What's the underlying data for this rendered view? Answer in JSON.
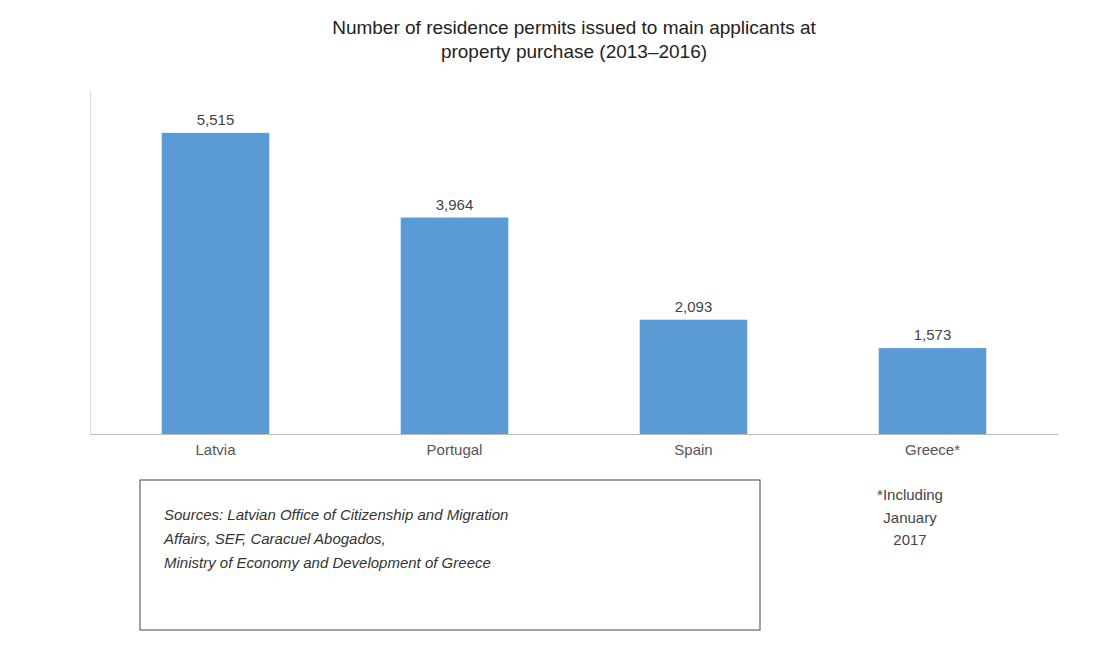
{
  "chart_data": {
    "type": "bar",
    "title": "Number of residence permits issued to main applicants at\nproperty purchase (2013–2016)",
    "categories": [
      "Latvia",
      "Portugal",
      "Spain",
      "Greece*"
    ],
    "values": [
      5515,
      3964,
      2093,
      1573
    ],
    "value_labels": [
      "5,515",
      "3,964",
      "2,093",
      "1,573"
    ],
    "color": "#5b9bd5",
    "ylim": [
      0,
      6300
    ],
    "tick_labels": "x",
    "annotations": [
      "Sources: Latvian Office of Citizenship and Migration\nAffairs, SEF, Caracuel Abogados,\nMinistry of Economy and Development of Greece",
      "*Including\nJanuary\n2017"
    ]
  }
}
